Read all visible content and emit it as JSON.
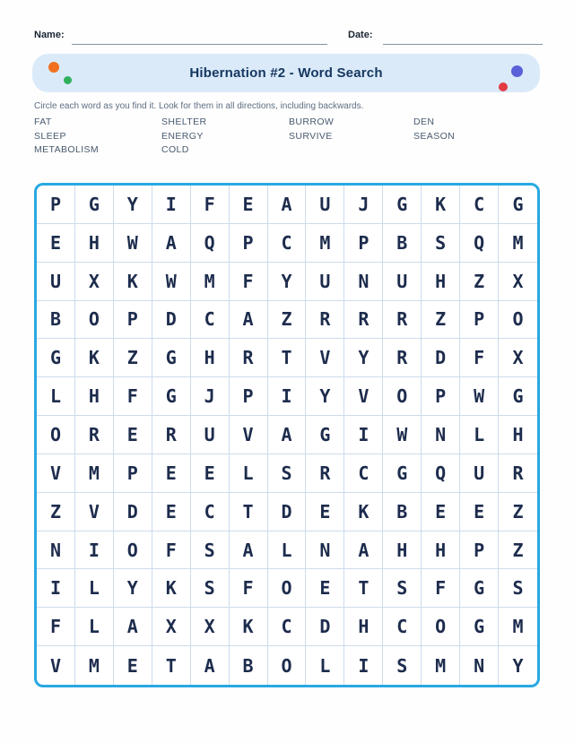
{
  "header": {
    "name_label": "Name:",
    "date_label": "Date:"
  },
  "banner": {
    "title": "Hibernation #2 - Word Search"
  },
  "instructions": "Circle each word as you find it. Look for them in all directions, including backwards.",
  "word_list": {
    "columns": [
      [
        "FAT",
        "SLEEP",
        "METABOLISM"
      ],
      [
        "SHELTER",
        "ENERGY",
        "COLD"
      ],
      [
        "BURROW",
        "SURVIVE"
      ],
      [
        "DEN",
        "SEASON"
      ]
    ]
  },
  "grid": {
    "size": 13,
    "rows": [
      "PGYIFEAUJGKCG",
      "EHWAQPCMPBSQM",
      "UXKWMFYUNUHZX",
      "BOPDCAZRRRZPO",
      "GKZGHRTVYRDFX",
      "LHFGJPIYVOPWG",
      "ORERUVAGIWNLH",
      "VMPEELSRCGQUR",
      "ZVDECTDEKBEEZ",
      "NIOFSALNAHHPZ",
      "ILYKSFOETSFGS",
      "FLAXXKCDHCOGM",
      "VMETABOLISMNY"
    ]
  },
  "colors": {
    "accent_border": "#29a9e2",
    "banner_bg": "#daeaf9",
    "grid_line": "#ccdcec",
    "letter": "#1d2c4d",
    "title": "#15365f",
    "dot_orange": "#f1701f",
    "dot_green": "#30b15c",
    "dot_indigo": "#5a60d8",
    "dot_red": "#e43a44"
  }
}
